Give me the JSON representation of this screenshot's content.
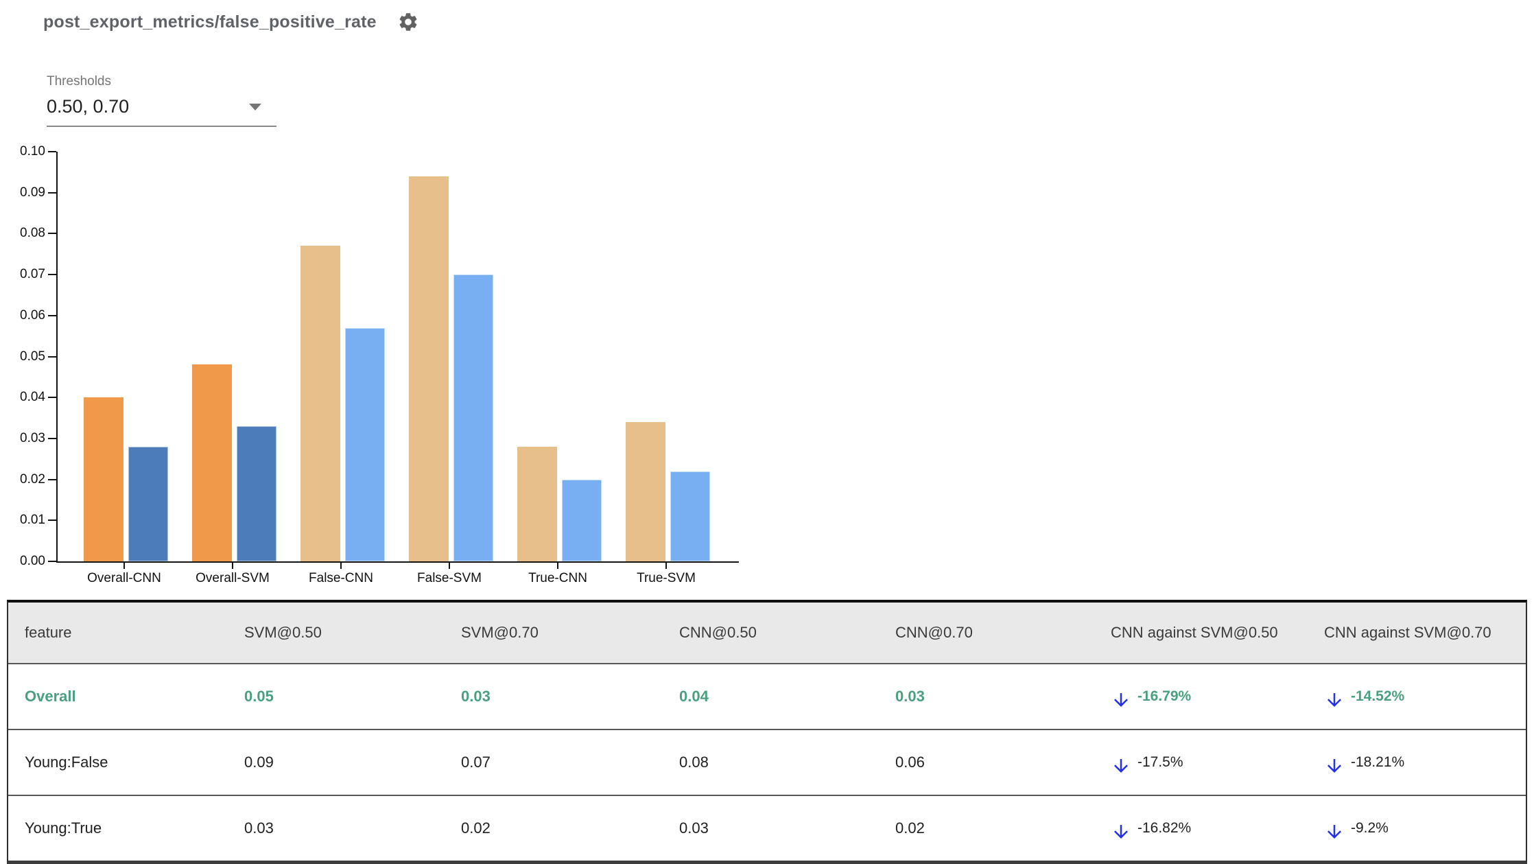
{
  "header": {
    "title": "post_export_metrics/false_positive_rate",
    "settings_icon": "settings-gear"
  },
  "thresholds": {
    "label": "Thresholds",
    "value": "0.50, 0.70",
    "caret_icon": "caret-down"
  },
  "chart_data": {
    "type": "bar",
    "title": "post_export_metrics/false_positive_rate",
    "categories": [
      "Overall-CNN",
      "Overall-SVM",
      "False-CNN",
      "False-SVM",
      "True-CNN",
      "True-SVM"
    ],
    "series": [
      {
        "name": "0.50",
        "values": [
          0.04,
          0.048,
          0.077,
          0.094,
          0.028,
          0.034
        ]
      },
      {
        "name": "0.70",
        "values": [
          0.028,
          0.033,
          0.057,
          0.07,
          0.02,
          0.022
        ]
      }
    ],
    "bar_colors": [
      [
        "#F0994A",
        "#4D7CBB"
      ],
      [
        "#F0994A",
        "#4D7CBB"
      ],
      [
        "#E6BF8A",
        "#77AFF2"
      ],
      [
        "#E6BF8A",
        "#77AFF2"
      ],
      [
        "#E6BF8A",
        "#77AFF2"
      ],
      [
        "#E6BF8A",
        "#77AFF2"
      ]
    ],
    "xlabel": "",
    "ylabel": "",
    "ylim": [
      0,
      0.1
    ],
    "y_tick_labels": [
      "0.00",
      "0.01",
      "0.02",
      "0.03",
      "0.04",
      "0.05",
      "0.06",
      "0.07",
      "0.08",
      "0.09",
      "0.10"
    ],
    "grid": false,
    "legend": "none"
  },
  "table": {
    "columns": [
      "feature",
      "SVM@0.50",
      "SVM@0.70",
      "CNN@0.50",
      "CNN@0.70",
      "CNN against SVM@0.50",
      "CNN against SVM@0.70"
    ],
    "rows": [
      {
        "feature": "Overall",
        "values": [
          "0.05",
          "0.03",
          "0.04",
          "0.03"
        ],
        "deltas": [
          "-16.79%",
          "-14.52%"
        ],
        "highlight": true
      },
      {
        "feature": "Young:False",
        "values": [
          "0.09",
          "0.07",
          "0.08",
          "0.06"
        ],
        "deltas": [
          "-17.5%",
          "-18.21%"
        ],
        "highlight": false
      },
      {
        "feature": "Young:True",
        "values": [
          "0.03",
          "0.02",
          "0.03",
          "0.02"
        ],
        "deltas": [
          "-16.82%",
          "-9.2%"
        ],
        "highlight": false
      }
    ],
    "delta_icon": "arrow-down"
  },
  "colors": {
    "highlight_green": "#4aa07e",
    "arrow_blue": "#2330EA",
    "title_gray": "#5f6368",
    "header_bg": "#e9e9e9"
  }
}
